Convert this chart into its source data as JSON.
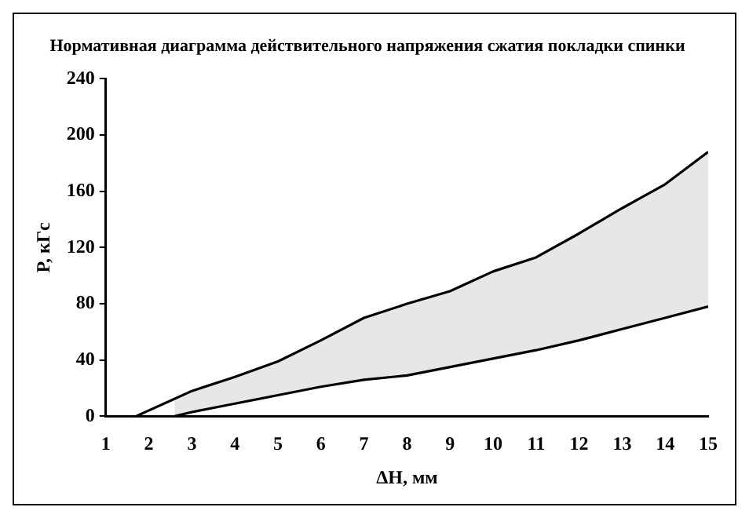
{
  "chart_data": {
    "type": "line",
    "title": "Нормативная диаграмма действительного напряжения сжатия покладки спинки",
    "xlabel": "ΔH, мм",
    "ylabel": "P, кГс",
    "xlim": [
      1,
      15
    ],
    "xticks": [
      1,
      2,
      3,
      4,
      5,
      6,
      7,
      8,
      9,
      10,
      11,
      12,
      13,
      14,
      15
    ],
    "ylim": [
      0,
      240
    ],
    "yticks": [
      0,
      40,
      80,
      120,
      160,
      200,
      240
    ],
    "grid": false,
    "legend": false,
    "marker": "none",
    "line_style": "solid",
    "series": [
      {
        "color": "#000000",
        "x": [
          2.6,
          3,
          4,
          5,
          6,
          7,
          8,
          9,
          10,
          11,
          12,
          13,
          14,
          15
        ],
        "values": [
          0,
          3,
          9,
          15,
          21,
          26,
          29,
          35,
          41,
          47,
          54,
          62,
          70,
          78
        ]
      },
      {
        "color": "#000000",
        "x": [
          1.7,
          3,
          4,
          5,
          6,
          7,
          8,
          9,
          10,
          11,
          12,
          13,
          14,
          15
        ],
        "values": [
          0,
          18,
          28,
          39,
          54,
          70,
          80,
          89,
          103,
          113,
          130,
          148,
          165,
          188
        ]
      }
    ]
  }
}
